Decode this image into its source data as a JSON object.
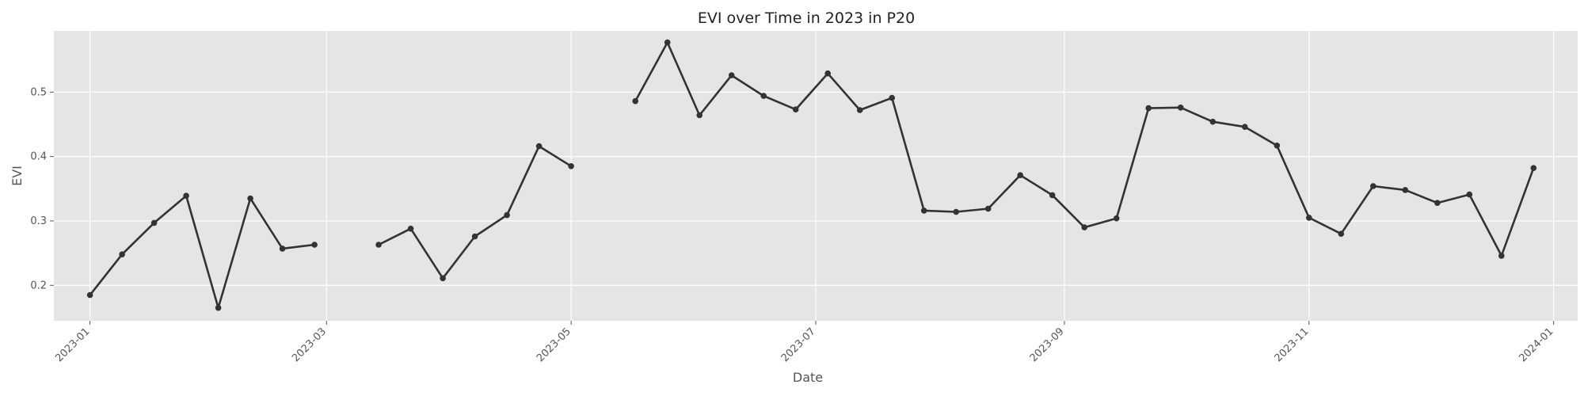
{
  "chart_data": {
    "type": "line",
    "title": "EVI over Time in 2023 in P20",
    "xlabel": "Date",
    "ylabel": "EVI",
    "xlim": [
      "2022-12-23",
      "2024-01-07"
    ],
    "ylim": [
      0.145,
      0.595
    ],
    "grid": true,
    "legend": "none",
    "x_ticks": [
      "2023-01",
      "2023-03",
      "2023-05",
      "2023-07",
      "2023-09",
      "2023-11",
      "2024-01"
    ],
    "y_ticks": [
      "0.2",
      "0.3",
      "0.4",
      "0.5"
    ],
    "colors": {
      "background": "#e5e5e5",
      "grid": "#ffffff",
      "line": "#333333"
    },
    "series": [
      {
        "segments": [
          [
            [
              "2023-01-01",
              0.185
            ],
            [
              "2023-01-09",
              0.248
            ],
            [
              "2023-01-17",
              0.297
            ],
            [
              "2023-01-25",
              0.339
            ],
            [
              "2023-02-02",
              0.165
            ],
            [
              "2023-02-10",
              0.335
            ],
            [
              "2023-02-18",
              0.257
            ],
            [
              "2023-02-26",
              0.263
            ]
          ],
          [
            [
              "2023-03-14",
              0.263
            ],
            [
              "2023-03-22",
              0.288
            ],
            [
              "2023-03-30",
              0.211
            ],
            [
              "2023-04-07",
              0.276
            ],
            [
              "2023-04-15",
              0.309
            ],
            [
              "2023-04-23",
              0.416
            ],
            [
              "2023-05-01",
              0.385
            ]
          ],
          [
            [
              "2023-05-17",
              0.486
            ],
            [
              "2023-05-25",
              0.577
            ],
            [
              "2023-06-02",
              0.464
            ],
            [
              "2023-06-10",
              0.526
            ],
            [
              "2023-06-18",
              0.494
            ],
            [
              "2023-06-26",
              0.473
            ],
            [
              "2023-07-04",
              0.529
            ],
            [
              "2023-07-12",
              0.472
            ],
            [
              "2023-07-20",
              0.491
            ],
            [
              "2023-07-28",
              0.316
            ],
            [
              "2023-08-05",
              0.314
            ],
            [
              "2023-08-13",
              0.319
            ],
            [
              "2023-08-21",
              0.371
            ],
            [
              "2023-08-29",
              0.34
            ],
            [
              "2023-09-06",
              0.29
            ],
            [
              "2023-09-14",
              0.304
            ],
            [
              "2023-09-22",
              0.475
            ],
            [
              "2023-09-30",
              0.476
            ],
            [
              "2023-10-08",
              0.454
            ],
            [
              "2023-10-16",
              0.446
            ],
            [
              "2023-10-24",
              0.417
            ],
            [
              "2023-11-01",
              0.305
            ],
            [
              "2023-11-09",
              0.28
            ],
            [
              "2023-11-17",
              0.354
            ],
            [
              "2023-11-25",
              0.348
            ],
            [
              "2023-12-03",
              0.328
            ],
            [
              "2023-12-11",
              0.341
            ],
            [
              "2023-12-19",
              0.246
            ],
            [
              "2023-12-27",
              0.382
            ]
          ]
        ]
      }
    ]
  }
}
